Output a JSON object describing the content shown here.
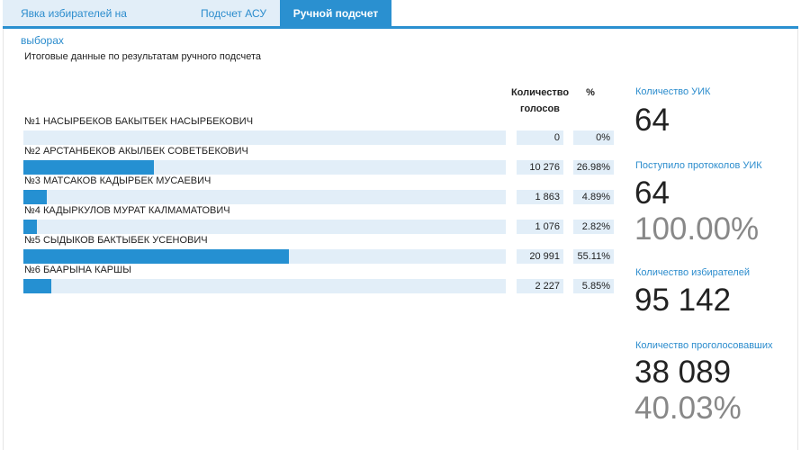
{
  "tabs": [
    {
      "label": "Явка избирателей на выборах",
      "active": false
    },
    {
      "label": "Подсчет АСУ",
      "active": false
    },
    {
      "label": "Ручной подсчет",
      "active": true
    }
  ],
  "subtitle": "Итоговые данные по результатам ручного подсчета",
  "table": {
    "header_votes_1": "Количество",
    "header_votes_2": "голосов",
    "header_pct": "%",
    "rows": [
      {
        "name": "№1 НАСЫРБЕКОВ БАКЫТБЕК НАСЫРБЕКОВИЧ",
        "votes": "0",
        "pct": "0%",
        "share": 0
      },
      {
        "name": "№2 АРСТАНБЕКОВ АКЫЛБЕК СОВЕТБЕКОВИЧ",
        "votes": "10 276",
        "pct": "26.98%",
        "share": 26.98
      },
      {
        "name": "№3 МАТСАКОВ КАДЫРБЕК МУСАЕВИЧ",
        "votes": "1 863",
        "pct": "4.89%",
        "share": 4.89
      },
      {
        "name": "№4 КАДЫРКУЛОВ МУРАТ КАЛМАМАТОВИЧ",
        "votes": "1 076",
        "pct": "2.82%",
        "share": 2.82
      },
      {
        "name": "№5 СЫДЫКОВ БАКТЫБЕК УСЕНОВИЧ",
        "votes": "20 991",
        "pct": "55.11%",
        "share": 55.11
      },
      {
        "name": "№6 БААРЫНА КАРШЫ",
        "votes": "2 227",
        "pct": "5.85%",
        "share": 5.85
      }
    ]
  },
  "stats": {
    "uik_label": "Количество УИК",
    "uik_value": "64",
    "protocols_label": "Поступило протоколов УИК",
    "protocols_value": "64",
    "protocols_pct": "100.00%",
    "voters_label": "Количество избирателей",
    "voters_value": "95 142",
    "voted_label": "Количество проголосовавших",
    "voted_value": "38 089",
    "voted_pct": "40.03%"
  },
  "colors": {
    "accent": "#2a90d0",
    "track": "#e2eef8",
    "label": "#2b8ccd"
  }
}
